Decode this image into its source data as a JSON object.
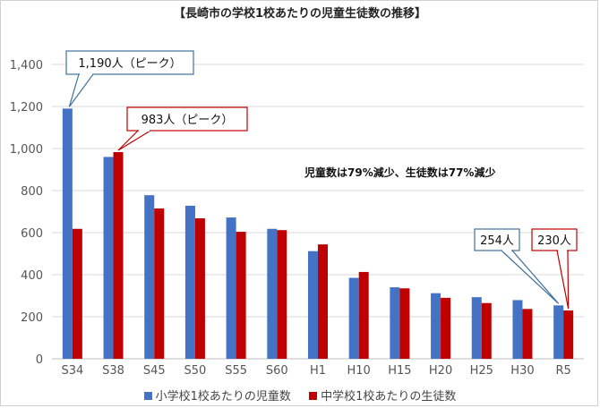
{
  "chart_data": {
    "type": "bar",
    "title": "【長崎市の学校1校あたりの児童生徒数の推移】",
    "categories": [
      "S34",
      "S38",
      "S45",
      "S50",
      "S55",
      "S60",
      "H1",
      "H10",
      "H15",
      "H20",
      "H25",
      "H30",
      "R5"
    ],
    "series": [
      {
        "name": "小学校1校あたりの児童数",
        "color": "#4472c4",
        "values": [
          1190,
          960,
          778,
          728,
          672,
          618,
          512,
          385,
          340,
          312,
          293,
          279,
          254
        ]
      },
      {
        "name": "中学校1校あたりの生徒数",
        "color": "#c00000",
        "values": [
          618,
          983,
          715,
          668,
          604,
          612,
          544,
          413,
          335,
          290,
          265,
          237,
          230
        ]
      }
    ],
    "ylim": [
      0,
      1400
    ],
    "yticks": [
      "0",
      "200",
      "400",
      "600",
      "800",
      "1,000",
      "1,200",
      "1,400"
    ],
    "grid": true,
    "legend": "bottom",
    "annotations": [
      {
        "text": "1,190人（ピーク）",
        "series": 0,
        "category": "S34",
        "style": "blue"
      },
      {
        "text": "983人（ピーク）",
        "series": 1,
        "category": "S38",
        "style": "red"
      },
      {
        "text": "254人",
        "series": 0,
        "category": "R5",
        "style": "blue"
      },
      {
        "text": "230人",
        "series": 1,
        "category": "R5",
        "style": "red"
      }
    ],
    "summary": "児童数は79%減少、生徒数は77%減少"
  }
}
